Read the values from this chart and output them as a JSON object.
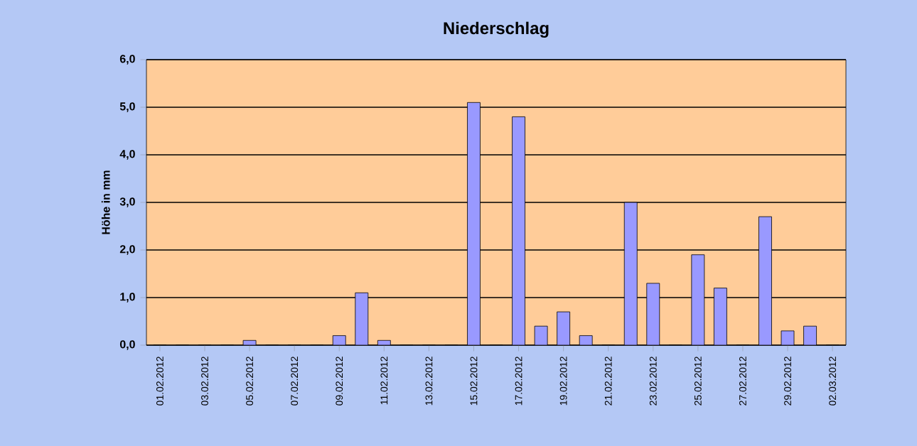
{
  "chart_data": {
    "type": "bar",
    "title": "Niederschlag",
    "ylabel": "Höhe in mm",
    "categories": [
      "01.02.2012",
      null,
      "03.02.2012",
      null,
      "05.02.2012",
      null,
      "07.02.2012",
      null,
      "09.02.2012",
      null,
      "11.02.2012",
      null,
      "13.02.2012",
      null,
      "15.02.2012",
      null,
      "17.02.2012",
      null,
      "19.02.2012",
      null,
      "21.02.2012",
      null,
      "23.02.2012",
      null,
      "25.02.2012",
      null,
      "27.02.2012",
      null,
      "29.02.2012",
      null,
      "02.03.2012"
    ],
    "values": [
      0,
      0,
      0,
      0,
      0.1,
      0,
      0,
      0,
      0.2,
      1.1,
      0.1,
      0,
      0,
      0,
      5.1,
      0,
      4.8,
      0.4,
      0.7,
      0.2,
      0,
      3.0,
      1.3,
      0,
      1.9,
      1.2,
      0,
      2.7,
      0.3,
      0.4,
      0
    ],
    "color": "#9999ff",
    "ylim": [
      0,
      6
    ],
    "yticks": [
      {
        "value": 0,
        "label": "0,0"
      },
      {
        "value": 1,
        "label": "1,0"
      },
      {
        "value": 2,
        "label": "2,0"
      },
      {
        "value": 3,
        "label": "3,0"
      },
      {
        "value": 4,
        "label": "4,0"
      },
      {
        "value": 5,
        "label": "5,0"
      },
      {
        "value": 6,
        "label": "6,0"
      }
    ],
    "grid": "y"
  }
}
